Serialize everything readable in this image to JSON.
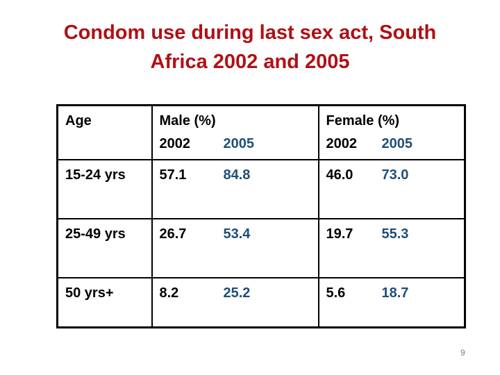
{
  "slide": {
    "title_line1": "Condom use during last sex act, South",
    "title_line2": "Africa 2002 and 2005",
    "page_number": "9"
  },
  "colors": {
    "title_red": "#B10F14",
    "year2005_blue": "#1F4E79",
    "text_black": "#000000",
    "table_border": "#000000",
    "page_number_gray": "#808080",
    "background": "#FFFFFF"
  },
  "table": {
    "header": {
      "age_label": "Age",
      "male_label": "Male (%)",
      "female_label": "Female (%)",
      "male_year_2002": "2002",
      "male_year_2005": "2005",
      "female_year_2002": "2002",
      "female_year_2005": "2005"
    },
    "rows": [
      {
        "age": "15-24 yrs",
        "male_2002": "57.1",
        "male_2005": "84.8",
        "female_2002": "46.0",
        "female_2005": "73.0"
      },
      {
        "age": "25-49 yrs",
        "male_2002": "26.7",
        "male_2005": "53.4",
        "female_2002": "19.7",
        "female_2005": "55.3"
      },
      {
        "age": "50 yrs+",
        "male_2002": "8.2",
        "male_2005": "25.2",
        "female_2002": "5.6",
        "female_2005": "18.7"
      }
    ]
  }
}
